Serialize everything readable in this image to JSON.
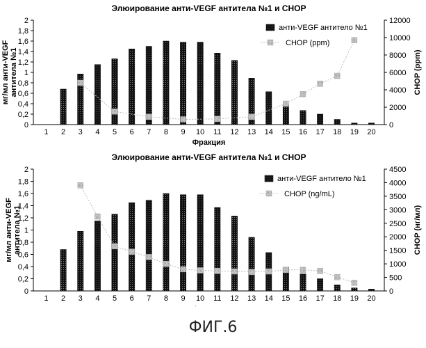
{
  "figure_caption": "ФИГ.6",
  "chart_data": [
    {
      "type": "bar",
      "title": "Элюирование анти-VEGF антитела №1 и CHOP",
      "xlabel": "Фракция",
      "ylabel": "мг/мл анти-VEGF антитела №1",
      "y2label": "CHOP (ppm)",
      "categories": [
        "1",
        "2",
        "3",
        "4",
        "5",
        "6",
        "7",
        "8",
        "9",
        "10",
        "11",
        "12",
        "13",
        "14",
        "15",
        "16",
        "17",
        "18",
        "19",
        "20"
      ],
      "ylim": [
        0,
        2
      ],
      "yticks": [
        "0",
        "0,2",
        "0,4",
        "0,6",
        "0,8",
        "1",
        "1,2",
        "1,4",
        "1,6",
        "1,8",
        "2"
      ],
      "y2lim": [
        0,
        12000
      ],
      "y2ticks": [
        "0",
        "2000",
        "4000",
        "6000",
        "8000",
        "10000",
        "12000"
      ],
      "legend_position": "top-right",
      "series": [
        {
          "name": "анти-VEGF антитело №1",
          "axis": "left",
          "style": "bar",
          "values": [
            0,
            0.68,
            0.97,
            1.15,
            1.26,
            1.45,
            1.5,
            1.6,
            1.58,
            1.58,
            1.37,
            1.23,
            0.89,
            0.63,
            0.38,
            0.27,
            0.2,
            0.1,
            0.03,
            0.03
          ]
        },
        {
          "name": "CHOP (ppm)",
          "axis": "right",
          "style": "marker-line",
          "values": [
            null,
            null,
            4800,
            null,
            1500,
            null,
            900,
            null,
            600,
            null,
            650,
            null,
            900,
            null,
            2400,
            3500,
            4700,
            5600,
            9700,
            null
          ]
        }
      ]
    },
    {
      "type": "bar",
      "title": "Элюирование анти-VEGF антитела №1 и CHOP",
      "xlabel": "Фракция",
      "ylabel": "мг/мл анти-VEGF антитела №1",
      "y2label": "CHOP (нг/мл)",
      "categories": [
        "1",
        "2",
        "3",
        "4",
        "5",
        "6",
        "7",
        "8",
        "9",
        "10",
        "11",
        "12",
        "13",
        "14",
        "15",
        "16",
        "17",
        "18",
        "19",
        "20"
      ],
      "ylim": [
        0,
        2
      ],
      "yticks": [
        "0",
        "0,2",
        "0,4",
        "0,6",
        "0,8",
        "1",
        "1,2",
        "1,4",
        "1,6",
        "1,8",
        "2"
      ],
      "y2lim": [
        0,
        4500
      ],
      "y2ticks": [
        "0",
        "500",
        "1000",
        "1500",
        "2000",
        "2500",
        "3000",
        "3500",
        "4000",
        "4500"
      ],
      "legend_position": "top-right",
      "series": [
        {
          "name": "анти-VEGF антитело №1",
          "axis": "left",
          "style": "bar",
          "values": [
            0,
            0.68,
            0.98,
            1.15,
            1.26,
            1.45,
            1.49,
            1.6,
            1.58,
            1.58,
            1.37,
            1.23,
            0.88,
            0.63,
            0.39,
            0.28,
            0.2,
            0.1,
            0.05,
            0.03
          ]
        },
        {
          "name": "CHOP (ng/mL)",
          "axis": "right",
          "style": "marker-line",
          "values": [
            null,
            null,
            3900,
            2750,
            1650,
            1450,
            1250,
            1000,
            800,
            760,
            740,
            720,
            700,
            720,
            780,
            780,
            740,
            510,
            300,
            null
          ]
        }
      ]
    }
  ]
}
